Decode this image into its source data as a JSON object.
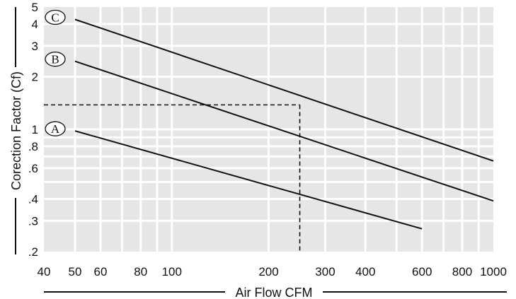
{
  "chart_data": {
    "type": "line",
    "xlabel": "Air Flow CFM",
    "ylabel": "Corection Factor (Cf)",
    "x_scale": "log",
    "y_scale": "log",
    "xlim": [
      40,
      1000
    ],
    "ylim": [
      0.2,
      5
    ],
    "grid": true,
    "x_ticks": [
      {
        "value": 40,
        "label": "40"
      },
      {
        "value": 50,
        "label": "50"
      },
      {
        "value": 60,
        "label": "60"
      },
      {
        "value": 80,
        "label": "80"
      },
      {
        "value": 100,
        "label": "100"
      },
      {
        "value": 200,
        "label": "200"
      },
      {
        "value": 300,
        "label": "300"
      },
      {
        "value": 400,
        "label": "400"
      },
      {
        "value": 600,
        "label": "600"
      },
      {
        "value": 800,
        "label": "800"
      },
      {
        "value": 1000,
        "label": "1000"
      }
    ],
    "y_ticks": [
      {
        "value": 0.2,
        "label": ".2"
      },
      {
        "value": 0.3,
        "label": ".3"
      },
      {
        "value": 0.4,
        "label": ".4"
      },
      {
        "value": 0.6,
        "label": ".6"
      },
      {
        "value": 0.8,
        "label": ".8"
      },
      {
        "value": 1,
        "label": "1"
      },
      {
        "value": 2,
        "label": "2"
      },
      {
        "value": 3,
        "label": "3"
      },
      {
        "value": 4,
        "label": "4"
      },
      {
        "value": 5,
        "label": "5"
      }
    ],
    "series": [
      {
        "name": "A",
        "x": [
          50,
          600
        ],
        "y": [
          0.98,
          0.27
        ]
      },
      {
        "name": "B",
        "x": [
          50,
          1000
        ],
        "y": [
          2.45,
          0.39
        ]
      },
      {
        "name": "C",
        "x": [
          50,
          1000
        ],
        "y": [
          4.25,
          0.66
        ]
      }
    ],
    "reference": {
      "x": 250,
      "y": 1.38
    }
  }
}
